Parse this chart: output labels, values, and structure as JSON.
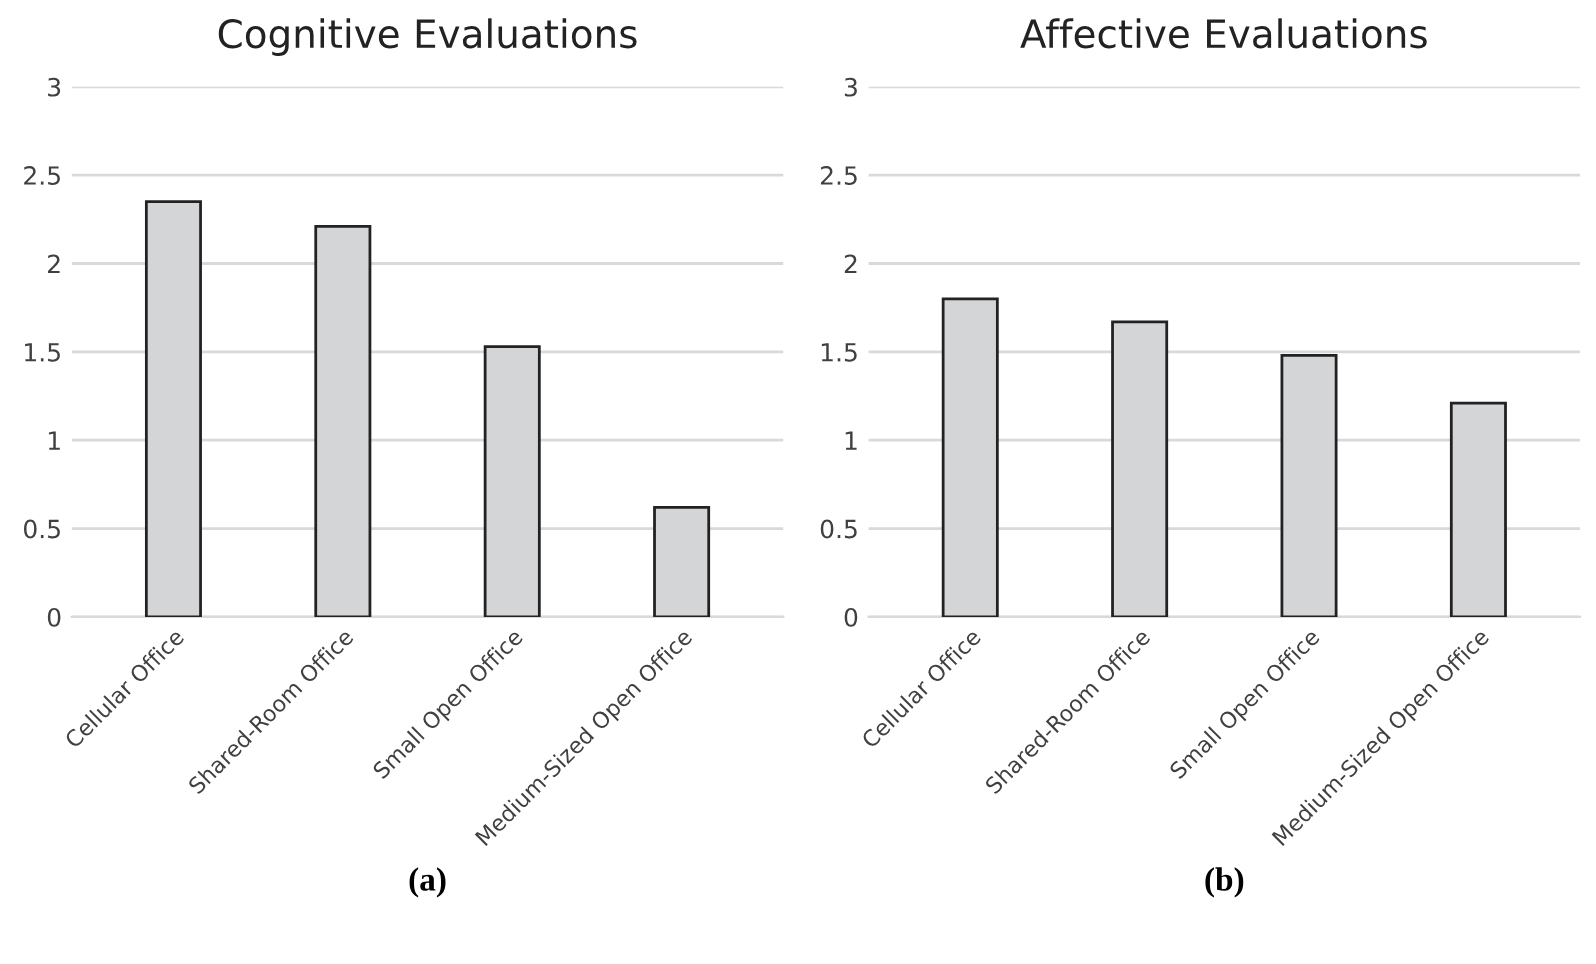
{
  "chart_data": [
    {
      "type": "bar",
      "title": "Cognitive Evaluations",
      "xlabel": "(a)",
      "categories": [
        "Cellular Office",
        "Shared-Room Office",
        "Small Open Office",
        "Medium-Sized Open Office"
      ],
      "values": [
        2.35,
        2.21,
        1.53,
        0.62
      ],
      "color": "#d4d5d7",
      "ylim": [
        0,
        3
      ],
      "yticks": [
        0,
        0.5,
        1,
        1.5,
        2,
        2.5,
        3
      ],
      "grid": "y"
    },
    {
      "type": "bar",
      "title": "Affective Evaluations",
      "xlabel": "(b)",
      "categories": [
        "Cellular Office",
        "Shared-Room Office",
        "Small Open Office",
        "Medium-Sized Open Office"
      ],
      "values": [
        1.8,
        1.67,
        1.48,
        1.21
      ],
      "color": "#d4d5d7",
      "ylim": [
        0,
        3
      ],
      "yticks": [
        0,
        0.5,
        1,
        1.5,
        2,
        2.5,
        3
      ],
      "grid": "y"
    }
  ]
}
